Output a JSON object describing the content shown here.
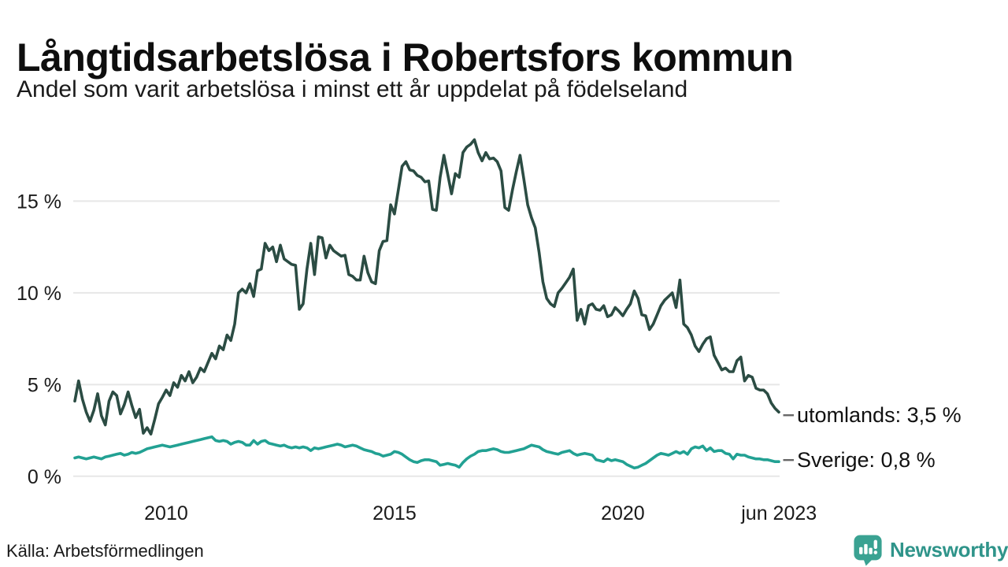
{
  "header": {
    "title": "Långtidsarbetslösa i Robertsfors kommun",
    "subtitle": "Andel som varit arbetslösa i minst ett år uppdelat på födelseland"
  },
  "footer": {
    "source": "Källa: Arbetsförmedlingen",
    "brand": "Newsworthy"
  },
  "colors": {
    "series_utomlands": "#2b4c43",
    "series_sverige": "#22a193",
    "brand_teal": "#2f948a",
    "logo_bubble": "#3aa292",
    "grid": "#e7e7e7",
    "axis_text": "#1a1a1a",
    "connector_dash": "#666666"
  },
  "chart_data": {
    "type": "line",
    "title": "Långtidsarbetslösa i Robertsfors kommun",
    "subtitle": "Andel som varit arbetslösa i minst ett år uppdelat på födelseland",
    "x_unit": "month",
    "x_start": "2008-01",
    "x_end": "2023-06",
    "ylabel": "",
    "ylim": [
      0,
      18.5
    ],
    "grid": "horizontal",
    "legend_position": "line-end-labels",
    "yticks": [
      {
        "label": "0 %",
        "value": 0
      },
      {
        "label": "5 %",
        "value": 5
      },
      {
        "label": "10 %",
        "value": 10
      },
      {
        "label": "15 %",
        "value": 15
      }
    ],
    "xticks": [
      {
        "label": "2010",
        "t": 2010
      },
      {
        "label": "2015",
        "t": 2015
      },
      {
        "label": "2020",
        "t": 2020
      },
      {
        "label": "jun 2023",
        "t": 2023.42
      }
    ],
    "series": [
      {
        "name": "utomlands",
        "end_label": "utomlands: 3,5 %",
        "end_value_text": "3,5 %",
        "color": "#2b4c43",
        "values": [
          4.1,
          5.2,
          4.2,
          3.5,
          3.0,
          3.6,
          4.5,
          3.3,
          2.8,
          4.1,
          4.6,
          4.4,
          3.4,
          3.9,
          4.6,
          3.85,
          3.2,
          3.65,
          2.35,
          2.65,
          2.3,
          3.1,
          3.95,
          4.3,
          4.7,
          4.4,
          5.1,
          4.85,
          5.5,
          5.2,
          5.7,
          5.1,
          5.4,
          5.9,
          5.7,
          6.2,
          6.7,
          6.4,
          7.1,
          6.9,
          7.7,
          7.4,
          8.3,
          10.0,
          10.2,
          10.0,
          10.5,
          9.8,
          11.2,
          11.3,
          12.7,
          12.3,
          12.5,
          11.7,
          12.6,
          11.85,
          11.7,
          11.55,
          11.5,
          9.1,
          9.4,
          11.3,
          12.7,
          11.0,
          13.05,
          13.0,
          11.9,
          12.6,
          12.3,
          12.15,
          12.0,
          12.05,
          11.0,
          10.9,
          10.7,
          10.7,
          12.0,
          11.1,
          10.6,
          10.5,
          12.3,
          12.8,
          12.85,
          14.8,
          14.3,
          15.6,
          16.9,
          17.15,
          16.7,
          16.65,
          16.4,
          16.3,
          16.05,
          16.1,
          14.55,
          14.5,
          16.3,
          17.5,
          16.45,
          15.4,
          16.5,
          16.3,
          17.65,
          17.95,
          18.1,
          18.35,
          17.65,
          17.2,
          17.65,
          17.3,
          17.35,
          17.15,
          16.65,
          14.65,
          14.5,
          15.6,
          16.6,
          17.5,
          16.2,
          14.8,
          14.1,
          13.55,
          12.2,
          10.6,
          9.7,
          9.4,
          9.25,
          10.0,
          10.25,
          10.55,
          10.85,
          11.3,
          8.5,
          9.1,
          8.3,
          9.3,
          9.4,
          9.1,
          9.05,
          9.3,
          8.7,
          8.8,
          9.2,
          9.0,
          8.75,
          9.1,
          9.4,
          10.1,
          9.7,
          8.8,
          8.75,
          8.0,
          8.3,
          8.8,
          9.3,
          9.6,
          9.8,
          10.0,
          9.2,
          10.7,
          8.3,
          8.1,
          7.7,
          7.1,
          6.8,
          7.2,
          7.5,
          7.6,
          6.6,
          6.2,
          5.8,
          5.9,
          5.7,
          5.7,
          6.3,
          6.5,
          5.2,
          5.5,
          5.4,
          4.8,
          4.7,
          4.7,
          4.5,
          4.0,
          3.7,
          3.5
        ]
      },
      {
        "name": "Sverige",
        "end_label": "Sverige: 0,8 %",
        "end_value_text": "0,8 %",
        "color": "#22a193",
        "values": [
          1.0,
          1.05,
          1.0,
          0.95,
          1.0,
          1.05,
          1.0,
          0.95,
          1.05,
          1.1,
          1.15,
          1.2,
          1.25,
          1.15,
          1.2,
          1.3,
          1.25,
          1.3,
          1.4,
          1.5,
          1.55,
          1.6,
          1.65,
          1.7,
          1.65,
          1.6,
          1.65,
          1.7,
          1.75,
          1.8,
          1.85,
          1.9,
          1.95,
          2.0,
          2.05,
          2.1,
          2.15,
          1.95,
          1.9,
          1.95,
          1.9,
          1.75,
          1.85,
          1.9,
          1.85,
          1.7,
          1.7,
          1.95,
          1.75,
          1.9,
          1.95,
          1.8,
          1.75,
          1.7,
          1.65,
          1.7,
          1.6,
          1.55,
          1.6,
          1.55,
          1.6,
          1.55,
          1.4,
          1.55,
          1.5,
          1.55,
          1.6,
          1.65,
          1.7,
          1.75,
          1.7,
          1.6,
          1.65,
          1.7,
          1.65,
          1.55,
          1.45,
          1.4,
          1.35,
          1.25,
          1.2,
          1.1,
          1.15,
          1.2,
          1.35,
          1.3,
          1.2,
          1.05,
          0.9,
          0.8,
          0.75,
          0.85,
          0.9,
          0.9,
          0.85,
          0.8,
          0.6,
          0.65,
          0.7,
          0.65,
          0.6,
          0.5,
          0.75,
          0.95,
          1.1,
          1.2,
          1.35,
          1.4,
          1.4,
          1.45,
          1.5,
          1.45,
          1.35,
          1.3,
          1.3,
          1.35,
          1.4,
          1.45,
          1.5,
          1.6,
          1.7,
          1.65,
          1.6,
          1.45,
          1.35,
          1.3,
          1.25,
          1.2,
          1.3,
          1.35,
          1.4,
          1.25,
          1.15,
          1.2,
          1.25,
          1.2,
          1.15,
          0.9,
          0.85,
          0.8,
          0.95,
          0.85,
          0.9,
          0.85,
          0.8,
          0.65,
          0.55,
          0.45,
          0.5,
          0.6,
          0.7,
          0.85,
          1.0,
          1.15,
          1.25,
          1.2,
          1.15,
          1.25,
          1.35,
          1.25,
          1.35,
          1.2,
          1.5,
          1.6,
          1.55,
          1.65,
          1.4,
          1.55,
          1.35,
          1.4,
          1.4,
          1.25,
          1.2,
          0.95,
          1.2,
          1.15,
          1.15,
          1.05,
          1.0,
          0.95,
          0.95,
          0.9,
          0.9,
          0.85,
          0.8,
          0.8
        ]
      }
    ]
  }
}
